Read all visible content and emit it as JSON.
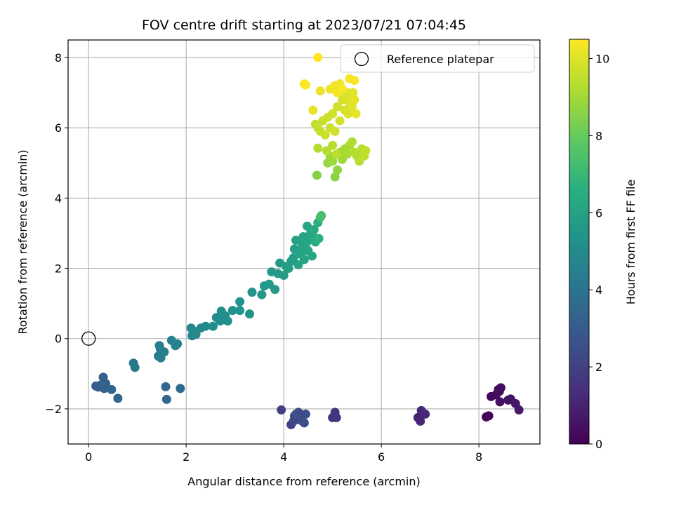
{
  "chart_data": {
    "type": "scatter",
    "title": "FOV centre drift starting at 2023/07/21 07:04:45",
    "xlabel": "Angular distance from reference (arcmin)",
    "ylabel": "Rotation from reference (arcmin)",
    "xlim": [
      -0.42,
      9.25
    ],
    "ylim": [
      -3.0,
      8.5
    ],
    "xticks": [
      "0",
      "2",
      "4",
      "6",
      "8"
    ],
    "yticks": [
      "−2",
      "0",
      "2",
      "4",
      "6",
      "8"
    ],
    "grid": true,
    "colormap": "viridis",
    "colorbar": {
      "label": "Hours from first FF file",
      "range": [
        0,
        10.5
      ],
      "ticks": [
        "0",
        "2",
        "4",
        "6",
        "8",
        "10"
      ]
    },
    "legend": {
      "position": "top-right",
      "entries": [
        {
          "name": "Reference platepar",
          "marker": "open-circle",
          "x": 0,
          "y": 0
        }
      ]
    },
    "series": [
      {
        "points": [
          [
            8.15,
            -2.23,
            0.05
          ],
          [
            8.2,
            -2.2,
            0.1
          ],
          [
            8.25,
            -1.65,
            0.2
          ],
          [
            8.35,
            -1.6,
            0.25
          ],
          [
            8.4,
            -1.45,
            0.3
          ],
          [
            8.42,
            -1.5,
            0.35
          ],
          [
            8.45,
            -1.4,
            0.4
          ],
          [
            8.43,
            -1.8,
            0.45
          ],
          [
            8.6,
            -1.75,
            0.5
          ],
          [
            8.65,
            -1.72,
            0.55
          ],
          [
            8.75,
            -1.85,
            0.6
          ],
          [
            8.82,
            -2.03,
            0.65
          ],
          [
            6.75,
            -2.25,
            1.05
          ],
          [
            6.8,
            -2.35,
            1.1
          ],
          [
            6.82,
            -2.05,
            1.15
          ],
          [
            6.9,
            -2.15,
            1.2
          ],
          [
            5.0,
            -2.25,
            1.5
          ],
          [
            5.05,
            -2.1,
            1.55
          ],
          [
            5.08,
            -2.25,
            1.6
          ],
          [
            3.95,
            -2.03,
            2.0
          ],
          [
            4.15,
            -2.45,
            2.1
          ],
          [
            4.2,
            -2.35,
            2.15
          ],
          [
            4.22,
            -2.2,
            2.2
          ],
          [
            4.28,
            -2.3,
            2.25
          ],
          [
            4.3,
            -2.1,
            2.3
          ],
          [
            4.35,
            -2.25,
            2.35
          ],
          [
            4.42,
            -2.4,
            2.4
          ],
          [
            4.45,
            -2.15,
            2.45
          ],
          [
            4.38,
            -2.35,
            2.5
          ],
          [
            4.25,
            -2.15,
            2.55
          ],
          [
            0.15,
            -1.35,
            3.0
          ],
          [
            0.2,
            -1.38,
            3.05
          ],
          [
            0.25,
            -1.32,
            3.1
          ],
          [
            0.3,
            -1.1,
            3.15
          ],
          [
            0.35,
            -1.28,
            3.2
          ],
          [
            0.32,
            -1.42,
            3.25
          ],
          [
            0.28,
            -1.35,
            3.3
          ],
          [
            0.47,
            -1.45,
            3.4
          ],
          [
            0.6,
            -1.7,
            3.45
          ],
          [
            1.58,
            -1.37,
            3.5
          ],
          [
            1.6,
            -1.73,
            3.55
          ],
          [
            1.88,
            -1.42,
            3.6
          ],
          [
            0.92,
            -0.7,
            4.2
          ],
          [
            0.95,
            -0.82,
            4.25
          ],
          [
            1.45,
            -0.2,
            4.3
          ],
          [
            1.47,
            -0.3,
            4.35
          ],
          [
            1.43,
            -0.5,
            4.4
          ],
          [
            1.48,
            -0.55,
            4.45
          ],
          [
            1.55,
            -0.38,
            4.5
          ],
          [
            1.7,
            -0.05,
            4.55
          ],
          [
            1.78,
            -0.2,
            4.6
          ],
          [
            1.82,
            -0.15,
            4.65
          ],
          [
            2.1,
            0.3,
            4.75
          ],
          [
            2.12,
            0.08,
            4.8
          ],
          [
            2.2,
            0.12,
            4.85
          ],
          [
            2.15,
            0.22,
            4.9
          ],
          [
            2.3,
            0.3,
            4.95
          ],
          [
            2.4,
            0.35,
            5.0
          ],
          [
            2.55,
            0.35,
            5.05
          ],
          [
            2.62,
            0.6,
            5.1
          ],
          [
            2.7,
            0.5,
            5.12
          ],
          [
            2.72,
            0.78,
            5.15
          ],
          [
            2.8,
            0.65,
            5.18
          ],
          [
            2.85,
            0.5,
            5.2
          ],
          [
            2.95,
            0.8,
            5.25
          ],
          [
            3.1,
            0.8,
            5.3
          ],
          [
            3.1,
            1.05,
            5.32
          ],
          [
            3.3,
            0.7,
            5.35
          ],
          [
            3.35,
            1.32,
            5.4
          ],
          [
            3.55,
            1.25,
            5.5
          ],
          [
            3.6,
            1.5,
            5.55
          ],
          [
            3.7,
            1.55,
            5.6
          ],
          [
            3.75,
            1.9,
            5.62
          ],
          [
            3.82,
            1.4,
            5.65
          ],
          [
            3.88,
            1.85,
            5.7
          ],
          [
            3.92,
            2.15,
            5.72
          ],
          [
            4.0,
            1.8,
            5.75
          ],
          [
            4.05,
            2.05,
            5.8
          ],
          [
            4.1,
            2.0,
            5.82
          ],
          [
            4.15,
            2.2,
            5.85
          ],
          [
            4.2,
            2.3,
            5.88
          ],
          [
            4.22,
            2.55,
            5.9
          ],
          [
            4.25,
            2.8,
            5.95
          ],
          [
            4.3,
            2.1,
            6.0
          ],
          [
            4.32,
            2.5,
            6.02
          ],
          [
            4.35,
            2.4,
            6.05
          ],
          [
            4.38,
            2.7,
            6.08
          ],
          [
            4.4,
            2.9,
            6.1
          ],
          [
            4.42,
            2.25,
            6.12
          ],
          [
            4.45,
            2.6,
            6.15
          ],
          [
            4.48,
            3.2,
            6.2
          ],
          [
            4.5,
            2.5,
            6.22
          ],
          [
            4.52,
            2.8,
            6.25
          ],
          [
            4.55,
            3.0,
            6.28
          ],
          [
            4.58,
            2.35,
            6.3
          ],
          [
            4.6,
            2.9,
            6.35
          ],
          [
            4.62,
            3.1,
            6.4
          ],
          [
            4.65,
            2.75,
            6.45
          ],
          [
            4.7,
            3.3,
            6.6
          ],
          [
            4.72,
            2.85,
            6.7
          ],
          [
            4.75,
            3.45,
            7.2
          ],
          [
            4.77,
            3.5,
            7.3
          ],
          [
            4.68,
            4.65,
            8.5
          ],
          [
            5.05,
            4.6,
            8.6
          ],
          [
            5.1,
            4.8,
            8.7
          ],
          [
            4.9,
            5.0,
            8.8
          ],
          [
            4.95,
            5.2,
            8.85
          ],
          [
            5.0,
            5.05,
            8.9
          ],
          [
            5.15,
            5.3,
            8.95
          ],
          [
            5.2,
            5.1,
            9.0
          ],
          [
            5.25,
            5.4,
            9.05
          ],
          [
            5.3,
            5.25,
            9.1
          ],
          [
            5.35,
            5.5,
            9.15
          ],
          [
            5.4,
            5.6,
            9.2
          ],
          [
            5.45,
            5.3,
            9.25
          ],
          [
            5.5,
            5.2,
            9.3
          ],
          [
            5.55,
            5.05,
            9.35
          ],
          [
            5.6,
            5.4,
            9.4
          ],
          [
            5.65,
            5.2,
            9.45
          ],
          [
            5.68,
            5.35,
            9.5
          ],
          [
            4.7,
            5.42,
            9.3
          ],
          [
            4.88,
            5.35,
            9.35
          ],
          [
            5.0,
            5.5,
            9.4
          ],
          [
            5.08,
            5.25,
            9.45
          ],
          [
            4.65,
            6.1,
            9.5
          ],
          [
            4.7,
            6.0,
            9.55
          ],
          [
            4.75,
            5.9,
            9.6
          ],
          [
            4.8,
            6.2,
            9.62
          ],
          [
            4.85,
            5.8,
            9.65
          ],
          [
            4.9,
            6.3,
            9.68
          ],
          [
            4.95,
            6.0,
            9.7
          ],
          [
            5.0,
            6.4,
            9.72
          ],
          [
            5.05,
            5.9,
            9.75
          ],
          [
            5.1,
            6.6,
            9.78
          ],
          [
            5.15,
            6.2,
            9.8
          ],
          [
            5.2,
            6.8,
            9.82
          ],
          [
            5.25,
            6.5,
            9.85
          ],
          [
            5.28,
            6.9,
            9.88
          ],
          [
            5.3,
            7.0,
            9.9
          ],
          [
            5.32,
            6.4,
            9.92
          ],
          [
            5.35,
            6.7,
            9.95
          ],
          [
            5.38,
            6.9,
            9.98
          ],
          [
            5.4,
            6.6,
            10.0
          ],
          [
            5.42,
            7.0,
            10.05
          ],
          [
            5.45,
            6.8,
            10.1
          ],
          [
            5.48,
            6.4,
            10.15
          ],
          [
            4.6,
            6.5,
            10.1
          ],
          [
            4.75,
            7.05,
            10.2
          ],
          [
            4.95,
            7.1,
            10.25
          ],
          [
            5.05,
            7.2,
            10.3
          ],
          [
            5.15,
            7.25,
            10.32
          ],
          [
            5.1,
            7.0,
            10.35
          ],
          [
            5.2,
            7.1,
            10.38
          ],
          [
            5.35,
            7.4,
            10.4
          ],
          [
            5.45,
            7.35,
            10.42
          ],
          [
            4.42,
            7.25,
            10.45
          ],
          [
            4.45,
            7.22,
            10.47
          ],
          [
            4.7,
            8.0,
            10.5
          ]
        ]
      }
    ]
  }
}
